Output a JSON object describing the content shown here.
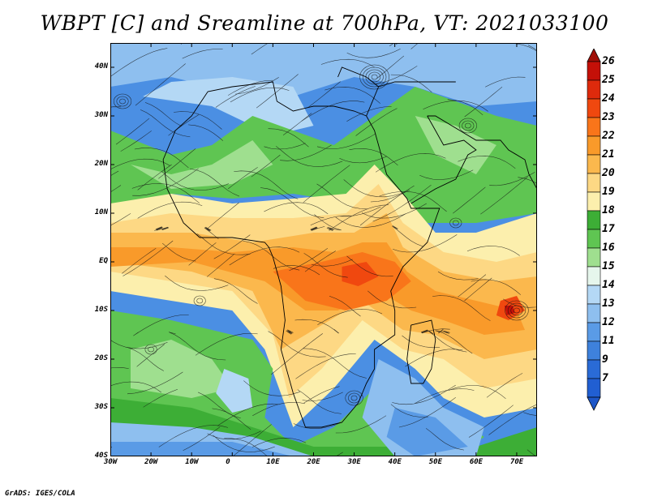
{
  "title": "WBPT [C] and Sreamline at 700hPa, VT: 2021033100",
  "credit": "GrADS: IGES/COLA",
  "map": {
    "lon_range": [
      -30,
      75
    ],
    "lat_range": [
      -40,
      45
    ],
    "lon_ticks": [
      {
        "value": -30,
        "label": "30W"
      },
      {
        "value": -20,
        "label": "20W"
      },
      {
        "value": -10,
        "label": "10W"
      },
      {
        "value": 0,
        "label": "0"
      },
      {
        "value": 10,
        "label": "10E"
      },
      {
        "value": 20,
        "label": "20E"
      },
      {
        "value": 30,
        "label": "30E"
      },
      {
        "value": 40,
        "label": "40E"
      },
      {
        "value": 50,
        "label": "50E"
      },
      {
        "value": 60,
        "label": "60E"
      },
      {
        "value": 70,
        "label": "70E"
      }
    ],
    "lat_ticks": [
      {
        "value": 40,
        "label": "40N"
      },
      {
        "value": 30,
        "label": "30N"
      },
      {
        "value": 20,
        "label": "20N"
      },
      {
        "value": 10,
        "label": "10N"
      },
      {
        "value": 0,
        "label": "EQ"
      },
      {
        "value": -10,
        "label": "10S"
      },
      {
        "value": -20,
        "label": "20S"
      },
      {
        "value": -30,
        "label": "30S"
      },
      {
        "value": -40,
        "label": "40S"
      }
    ]
  },
  "colorbar": {
    "levels": [
      "26",
      "25",
      "24",
      "23",
      "22",
      "21",
      "20",
      "19",
      "18",
      "17",
      "16",
      "15",
      "14",
      "13",
      "12",
      "11",
      "9",
      "7"
    ],
    "colors": [
      "#c41008",
      "#de2a0c",
      "#f0480f",
      "#f9751a",
      "#f99a2a",
      "#fbb84d",
      "#fdd884",
      "#fcefad",
      "#3dae36",
      "#5fc552",
      "#9fdf8f",
      "#e6f6ec",
      "#b4d8f5",
      "#8ebfef",
      "#5a9be6",
      "#3e81dc",
      "#2a6bd6",
      "#215fd2"
    ],
    "top_color": "#a01008",
    "bottom_color": "#1e57c8"
  }
}
